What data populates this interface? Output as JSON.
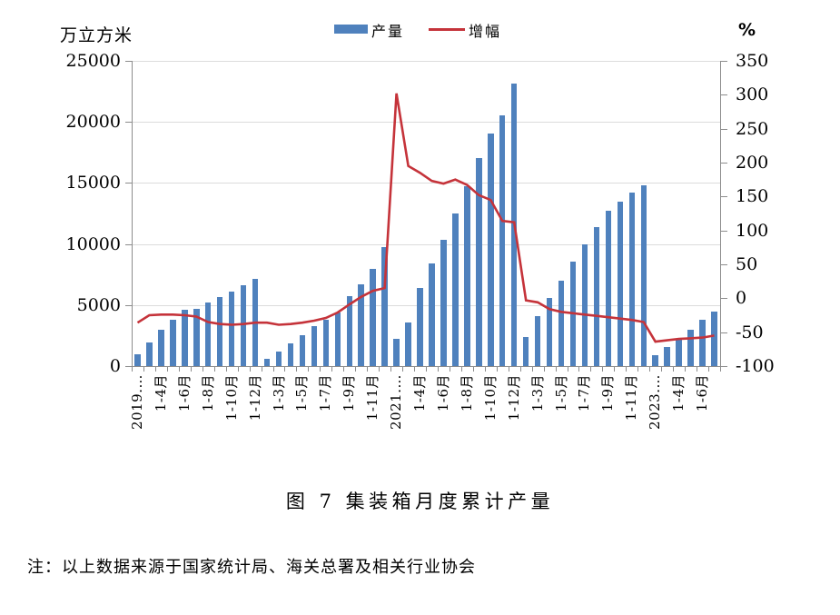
{
  "chart_data": {
    "type": "combo",
    "title": "图 7 集装箱月度累计产量",
    "note": "注：以上数据来源于国家统计局、海关总署及相关行业协会",
    "legend_position": "top",
    "grid": "horizontal",
    "left_axis": {
      "label": "万立方米",
      "min": 0,
      "max": 25000,
      "step": 5000,
      "tick_labels": [
        "25000",
        "20000",
        "15000",
        "10000",
        "5000",
        "0"
      ]
    },
    "right_axis": {
      "label": "%",
      "min": -100,
      "max": 350,
      "step": 50,
      "tick_labels": [
        "350",
        "300",
        "250",
        "200",
        "150",
        "100",
        "50",
        "0",
        "-50",
        "-100"
      ]
    },
    "x_axis": {
      "labels": [
        "2019.…",
        "",
        "1-4月",
        "",
        "1-6月",
        "",
        "1-8月",
        "",
        "1-10月",
        "",
        "1-12月",
        "",
        "1-3月",
        "",
        "1-5月",
        "",
        "1-7月",
        "",
        "1-9月",
        "",
        "1-11月",
        "",
        "2021.…",
        "",
        "1-4月",
        "",
        "1-6月",
        "",
        "1-8月",
        "",
        "1-10月",
        "",
        "1-12月",
        "",
        "1-3月",
        "",
        "1-5月",
        "",
        "1-7月",
        "",
        "1-9月",
        "",
        "1-11月",
        "",
        "2023.…",
        "",
        "1-4月",
        "",
        "1-6月",
        ""
      ]
    },
    "series": [
      {
        "name": "产量",
        "type": "bar",
        "axis": "left",
        "color": "#4f81bd",
        "values": [
          1000,
          1930,
          2980,
          3830,
          4630,
          4710,
          5240,
          5630,
          6100,
          6610,
          7170,
          560,
          1220,
          1830,
          2560,
          3240,
          3780,
          4390,
          5730,
          6700,
          7930,
          9760,
          2240,
          3560,
          6370,
          8410,
          10370,
          12510,
          14760,
          17070,
          19020,
          20540,
          23160,
          2360,
          4100,
          5550,
          6970,
          8530,
          9950,
          11400,
          12690,
          13440,
          14180,
          14800,
          900,
          1570,
          2240,
          2990,
          3810,
          4480
        ]
      },
      {
        "name": "增幅",
        "type": "line",
        "axis": "right",
        "color": "#c5333a",
        "values": [
          -36,
          -25,
          -24,
          -24,
          -25,
          -27,
          -35,
          -38,
          -39,
          -38,
          -36,
          -36,
          -39,
          -38,
          -36,
          -33,
          -29,
          -21,
          -9,
          2,
          11,
          15,
          302,
          195,
          185,
          173,
          169,
          175,
          167,
          152,
          145,
          114,
          112,
          -3,
          -6,
          -16,
          -20,
          -22,
          -24,
          -26,
          -28,
          -30,
          -32,
          -35,
          -64,
          -62,
          -60,
          -59,
          -58,
          -55
        ]
      }
    ]
  }
}
